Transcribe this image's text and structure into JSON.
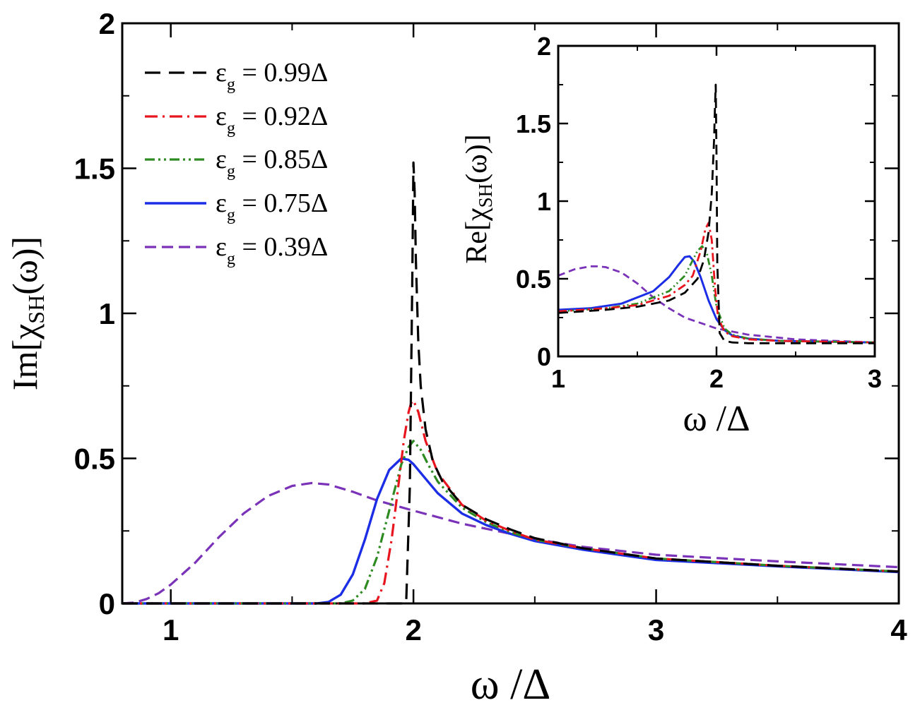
{
  "chart_data": [
    {
      "type": "line",
      "name": "main",
      "xlim": [
        0.8,
        4
      ],
      "ylim": [
        0,
        2
      ],
      "xticks": [
        1,
        2,
        3,
        4
      ],
      "xtick_labels": [
        "1",
        "2",
        "3",
        "4"
      ],
      "yticks": [
        0,
        0.5,
        1,
        1.5,
        2
      ],
      "ytick_labels": [
        "0",
        "0.5",
        "1",
        "1.5",
        "2"
      ],
      "xlabel": "ω /Δ",
      "ylabel": "Im[χSH(ω)]",
      "ylabel_parts": {
        "pre": "Im[χ",
        "sub": "SH",
        "post": "(ω)]"
      },
      "series": [
        {
          "name": "ε_g = 0.99Δ",
          "color": "#000000",
          "dash": "22,12",
          "width": 3.2,
          "x": [
            0.8,
            1.9,
            1.97,
            1.985,
            1.995,
            2.0,
            2.005,
            2.01,
            2.02,
            2.03,
            2.05,
            2.08,
            2.12,
            2.2,
            2.3,
            2.4,
            2.5,
            2.7,
            3.0,
            3.5,
            4.0
          ],
          "y": [
            0,
            0,
            0,
            0.4,
            1.1,
            1.52,
            1.42,
            1.18,
            0.9,
            0.75,
            0.6,
            0.49,
            0.42,
            0.34,
            0.29,
            0.255,
            0.225,
            0.19,
            0.155,
            0.13,
            0.11
          ]
        },
        {
          "name": "ε_g = 0.92Δ",
          "color": "#e8141e",
          "dash": "18,7,3,7",
          "width": 3.2,
          "x": [
            0.8,
            1.8,
            1.85,
            1.88,
            1.91,
            1.94,
            1.96,
            1.98,
            1.99,
            2.0,
            2.02,
            2.05,
            2.1,
            2.2,
            2.3,
            2.4,
            2.5,
            2.7,
            3.0,
            3.5,
            4.0
          ],
          "y": [
            0,
            0,
            0.01,
            0.07,
            0.22,
            0.42,
            0.56,
            0.66,
            0.69,
            0.7,
            0.66,
            0.56,
            0.45,
            0.34,
            0.285,
            0.25,
            0.22,
            0.19,
            0.155,
            0.13,
            0.11
          ]
        },
        {
          "name": "ε_g = 0.85Δ",
          "color": "#2e8b22",
          "dash": "14,5,3,5,3,5",
          "width": 3.2,
          "x": [
            0.8,
            1.7,
            1.75,
            1.8,
            1.85,
            1.9,
            1.95,
            1.98,
            2.0,
            2.03,
            2.06,
            2.1,
            2.2,
            2.3,
            2.4,
            2.5,
            2.7,
            3.0,
            3.5,
            4.0
          ],
          "y": [
            0,
            0,
            0.01,
            0.05,
            0.16,
            0.32,
            0.48,
            0.54,
            0.56,
            0.53,
            0.48,
            0.42,
            0.33,
            0.28,
            0.245,
            0.22,
            0.19,
            0.155,
            0.13,
            0.11
          ]
        },
        {
          "name": "ε_g = 0.75Δ",
          "color": "#1b2ee6",
          "dash": "",
          "width": 3.4,
          "x": [
            0.8,
            1.6,
            1.65,
            1.7,
            1.75,
            1.8,
            1.85,
            1.9,
            1.95,
            1.98,
            2.0,
            2.05,
            2.1,
            2.2,
            2.3,
            2.4,
            2.5,
            2.7,
            3.0,
            3.5,
            4.0
          ],
          "y": [
            0,
            0,
            0.005,
            0.03,
            0.1,
            0.22,
            0.36,
            0.46,
            0.5,
            0.495,
            0.48,
            0.43,
            0.38,
            0.31,
            0.27,
            0.24,
            0.215,
            0.185,
            0.15,
            0.128,
            0.108
          ]
        },
        {
          "name": "ε_g = 0.39Δ",
          "color": "#7a32b8",
          "dash": "16,8",
          "width": 3.2,
          "x": [
            0.8,
            0.85,
            0.9,
            0.95,
            1.0,
            1.1,
            1.2,
            1.3,
            1.4,
            1.5,
            1.58,
            1.65,
            1.75,
            1.85,
            2.0,
            2.2,
            2.4,
            2.5,
            2.7,
            3.0,
            3.5,
            4.0
          ],
          "y": [
            0,
            0.003,
            0.015,
            0.035,
            0.065,
            0.14,
            0.23,
            0.31,
            0.37,
            0.405,
            0.415,
            0.41,
            0.385,
            0.355,
            0.32,
            0.275,
            0.24,
            0.222,
            0.195,
            0.168,
            0.145,
            0.125
          ]
        }
      ]
    },
    {
      "type": "line",
      "name": "inset",
      "xlim": [
        1,
        3
      ],
      "ylim": [
        0,
        2
      ],
      "xticks": [
        1,
        2,
        3
      ],
      "xtick_labels": [
        "1",
        "2",
        "3"
      ],
      "yticks": [
        0,
        0.5,
        1,
        1.5,
        2
      ],
      "ytick_labels": [
        "0",
        "0.5",
        "1",
        "1.5",
        "2"
      ],
      "xlabel": "ω /Δ",
      "ylabel": "Re[χSH(ω)]",
      "ylabel_parts": {
        "pre": "Re[χ",
        "sub": "SH",
        "post": "(ω)]"
      },
      "series": [
        {
          "name": "ε_g = 0.99Δ",
          "color": "#000000",
          "dash": "14,8",
          "width": 2.8,
          "x": [
            1.0,
            1.3,
            1.5,
            1.7,
            1.8,
            1.88,
            1.92,
            1.95,
            1.97,
            1.985,
            1.99,
            1.995,
            2.0,
            2.005,
            2.02,
            2.05,
            2.1,
            2.2,
            2.4,
            3.0
          ],
          "y": [
            0.28,
            0.3,
            0.32,
            0.36,
            0.41,
            0.5,
            0.62,
            0.8,
            1.05,
            1.4,
            1.6,
            1.75,
            1.3,
            0.6,
            0.15,
            0.1,
            0.09,
            0.085,
            0.085,
            0.085
          ]
        },
        {
          "name": "ε_g = 0.92Δ",
          "color": "#e8141e",
          "dash": "12,5,3,5",
          "width": 2.8,
          "x": [
            1.0,
            1.3,
            1.5,
            1.7,
            1.8,
            1.85,
            1.9,
            1.93,
            1.95,
            1.97,
            1.99,
            2.01,
            2.05,
            2.1,
            2.2,
            2.4,
            3.0
          ],
          "y": [
            0.29,
            0.31,
            0.33,
            0.39,
            0.46,
            0.52,
            0.68,
            0.82,
            0.86,
            0.75,
            0.45,
            0.25,
            0.16,
            0.13,
            0.11,
            0.1,
            0.09
          ]
        },
        {
          "name": "ε_g = 0.85Δ",
          "color": "#2e8b22",
          "dash": "10,4,2,4,2,4",
          "width": 2.8,
          "x": [
            1.0,
            1.3,
            1.5,
            1.7,
            1.8,
            1.85,
            1.88,
            1.91,
            1.94,
            1.97,
            2.0,
            2.05,
            2.1,
            2.2,
            2.4,
            3.0
          ],
          "y": [
            0.29,
            0.31,
            0.34,
            0.42,
            0.52,
            0.62,
            0.68,
            0.71,
            0.66,
            0.52,
            0.32,
            0.18,
            0.14,
            0.115,
            0.1,
            0.09
          ]
        },
        {
          "name": "ε_g = 0.75Δ",
          "color": "#1b2ee6",
          "dash": "",
          "width": 3.0,
          "x": [
            1.0,
            1.2,
            1.4,
            1.6,
            1.7,
            1.76,
            1.8,
            1.83,
            1.86,
            1.9,
            1.95,
            2.0,
            2.05,
            2.1,
            2.2,
            2.4,
            3.0
          ],
          "y": [
            0.3,
            0.31,
            0.34,
            0.42,
            0.51,
            0.59,
            0.64,
            0.645,
            0.61,
            0.51,
            0.36,
            0.24,
            0.17,
            0.135,
            0.115,
            0.1,
            0.09
          ]
        },
        {
          "name": "ε_g = 0.39Δ",
          "color": "#7a32b8",
          "dash": "10,6",
          "width": 2.8,
          "x": [
            1.0,
            1.1,
            1.2,
            1.25,
            1.3,
            1.4,
            1.5,
            1.6,
            1.7,
            1.8,
            2.0,
            2.2,
            2.5,
            3.0
          ],
          "y": [
            0.52,
            0.56,
            0.58,
            0.58,
            0.575,
            0.54,
            0.47,
            0.38,
            0.31,
            0.25,
            0.18,
            0.14,
            0.11,
            0.09
          ]
        }
      ]
    }
  ],
  "legend": {
    "symbol": "ε",
    "subscript": "g",
    "entries": [
      " = 0.99Δ",
      " = 0.92Δ",
      " = 0.85Δ",
      " = 0.75Δ",
      " = 0.39Δ"
    ]
  }
}
